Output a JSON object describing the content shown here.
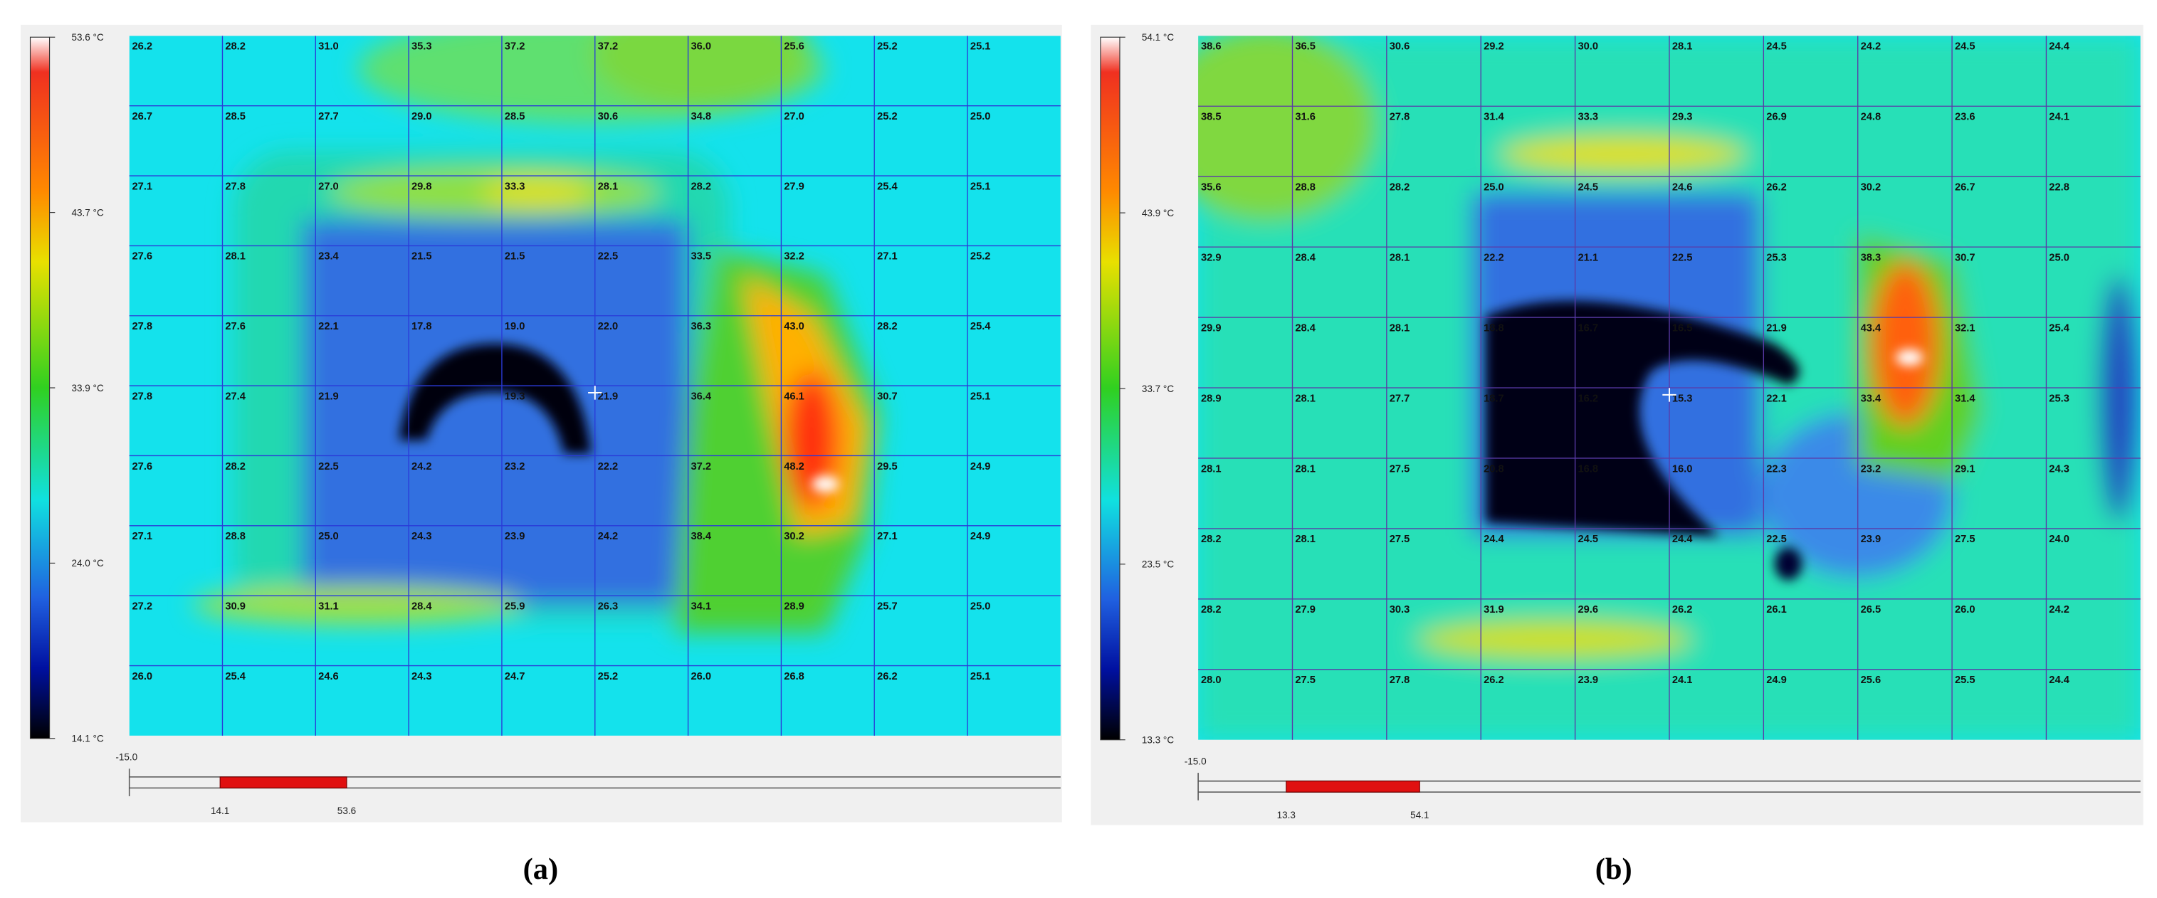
{
  "panels": [
    {
      "label": "(a)",
      "scale_labels": [
        "53.6 °C",
        "43.7 °C",
        "33.9 °C",
        "24.0 °C",
        "14.1 °C"
      ],
      "range_start": "-15.0",
      "range_low": "14.1",
      "range_high": "53.6",
      "grid": [
        [
          "26.2",
          "28.2",
          "31.0",
          "35.3",
          "37.2",
          "37.2",
          "36.0",
          "25.6",
          "25.2",
          "25.1"
        ],
        [
          "26.7",
          "28.5",
          "27.7",
          "29.0",
          "28.5",
          "30.6",
          "34.8",
          "27.0",
          "25.2",
          "25.0"
        ],
        [
          "27.1",
          "27.8",
          "27.0",
          "29.8",
          "33.3",
          "28.1",
          "28.2",
          "27.9",
          "25.4",
          "25.1"
        ],
        [
          "27.6",
          "28.1",
          "23.4",
          "21.5",
          "21.5",
          "22.5",
          "33.5",
          "32.2",
          "27.1",
          "25.2"
        ],
        [
          "27.8",
          "27.6",
          "22.1",
          "17.8",
          "19.0",
          "22.0",
          "36.3",
          "43.0",
          "28.2",
          "25.4"
        ],
        [
          "27.8",
          "27.4",
          "21.9",
          null,
          "19.3",
          "21.9",
          "36.4",
          "46.1",
          "30.7",
          "25.1"
        ],
        [
          "27.6",
          "28.2",
          "22.5",
          "24.2",
          "23.2",
          "22.2",
          "37.2",
          "48.2",
          "29.5",
          "24.9"
        ],
        [
          "27.1",
          "28.8",
          "25.0",
          "24.3",
          "23.9",
          "24.2",
          "38.4",
          "30.2",
          "27.1",
          "24.9"
        ],
        [
          "27.2",
          "30.9",
          "31.1",
          "28.4",
          "25.9",
          "26.3",
          "34.1",
          "28.9",
          "25.7",
          "25.0"
        ],
        [
          "26.0",
          "25.4",
          "24.6",
          "24.3",
          "24.7",
          "25.2",
          "26.0",
          "26.8",
          "26.2",
          "25.1"
        ]
      ]
    },
    {
      "label": "(b)",
      "scale_labels": [
        "54.1 °C",
        "43.9 °C",
        "33.7 °C",
        "23.5 °C",
        "13.3 °C"
      ],
      "range_start": "-15.0",
      "range_low": "13.3",
      "range_high": "54.1",
      "grid": [
        [
          "38.6",
          "36.5",
          "30.6",
          "29.2",
          "30.0",
          "28.1",
          "24.5",
          "24.2",
          "24.5",
          "24.4"
        ],
        [
          "38.5",
          "31.6",
          "27.8",
          "31.4",
          "33.3",
          "29.3",
          "26.9",
          "24.8",
          "23.6",
          "24.1"
        ],
        [
          "35.6",
          "28.8",
          "28.2",
          "25.0",
          "24.5",
          "24.6",
          "26.2",
          "30.2",
          "26.7",
          "22.8"
        ],
        [
          "32.9",
          "28.4",
          "28.1",
          "22.2",
          "21.1",
          "22.5",
          "25.3",
          "38.3",
          "30.7",
          "25.0"
        ],
        [
          "29.9",
          "28.4",
          "28.1",
          "18.8",
          "16.7",
          "16.5",
          "21.9",
          "43.4",
          "32.1",
          "25.4"
        ],
        [
          "28.9",
          "28.1",
          "27.7",
          "18.7",
          "16.2",
          "15.3",
          "22.1",
          "33.4",
          "31.4",
          "25.3"
        ],
        [
          "28.1",
          "28.1",
          "27.5",
          "20.8",
          "16.8",
          "16.0",
          "22.3",
          "23.2",
          "29.1",
          "24.3"
        ],
        [
          "28.2",
          "28.1",
          "27.5",
          "24.4",
          "24.5",
          "24.4",
          "22.5",
          "23.9",
          "27.5",
          "24.0"
        ],
        [
          "28.2",
          "27.9",
          "30.3",
          "31.9",
          "29.6",
          "26.2",
          "26.1",
          "26.5",
          "26.0",
          "24.2"
        ],
        [
          "28.0",
          "27.5",
          "27.8",
          "26.2",
          "23.9",
          "24.1",
          "24.9",
          "25.6",
          "25.5",
          "24.4"
        ]
      ]
    }
  ]
}
